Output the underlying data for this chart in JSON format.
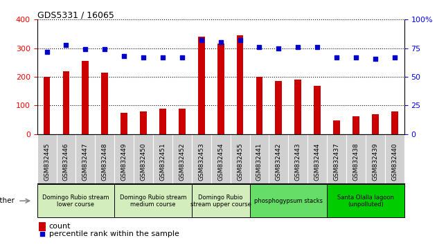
{
  "title": "GDS5331 / 16065",
  "samples": [
    "GSM832445",
    "GSM832446",
    "GSM832447",
    "GSM832448",
    "GSM832449",
    "GSM832450",
    "GSM832451",
    "GSM832452",
    "GSM832453",
    "GSM832454",
    "GSM832455",
    "GSM832441",
    "GSM832442",
    "GSM832443",
    "GSM832444",
    "GSM832437",
    "GSM832438",
    "GSM832439",
    "GSM832440"
  ],
  "counts": [
    200,
    220,
    255,
    215,
    75,
    78,
    90,
    90,
    340,
    315,
    345,
    200,
    185,
    190,
    168,
    48,
    62,
    70,
    80
  ],
  "percentiles": [
    72,
    78,
    74,
    74,
    68,
    67,
    67,
    67,
    82,
    80,
    82,
    76,
    75,
    76,
    76,
    67,
    67,
    66,
    67
  ],
  "bar_color": "#cc0000",
  "dot_color": "#0000cc",
  "ylim_left": [
    0,
    400
  ],
  "ylim_right": [
    0,
    100
  ],
  "yticks_left": [
    0,
    100,
    200,
    300,
    400
  ],
  "yticks_right": [
    0,
    25,
    50,
    75,
    100
  ],
  "groups": [
    {
      "label": "Domingo Rubio stream\nlower course",
      "start": 0,
      "end": 3,
      "color": "#d4edbc"
    },
    {
      "label": "Domingo Rubio stream\nmedium course",
      "start": 4,
      "end": 7,
      "color": "#d4edbc"
    },
    {
      "label": "Domingo Rubio\nstream upper course",
      "start": 8,
      "end": 10,
      "color": "#d4edbc"
    },
    {
      "label": "phosphogypsum stacks",
      "start": 11,
      "end": 14,
      "color": "#66dd66"
    },
    {
      "label": "Santa Olalla lagoon\n(unpolluted)",
      "start": 15,
      "end": 18,
      "color": "#00cc00"
    }
  ],
  "xtick_bg": "#d0d0d0",
  "legend_count_color": "#cc0000",
  "legend_dot_color": "#0000cc"
}
